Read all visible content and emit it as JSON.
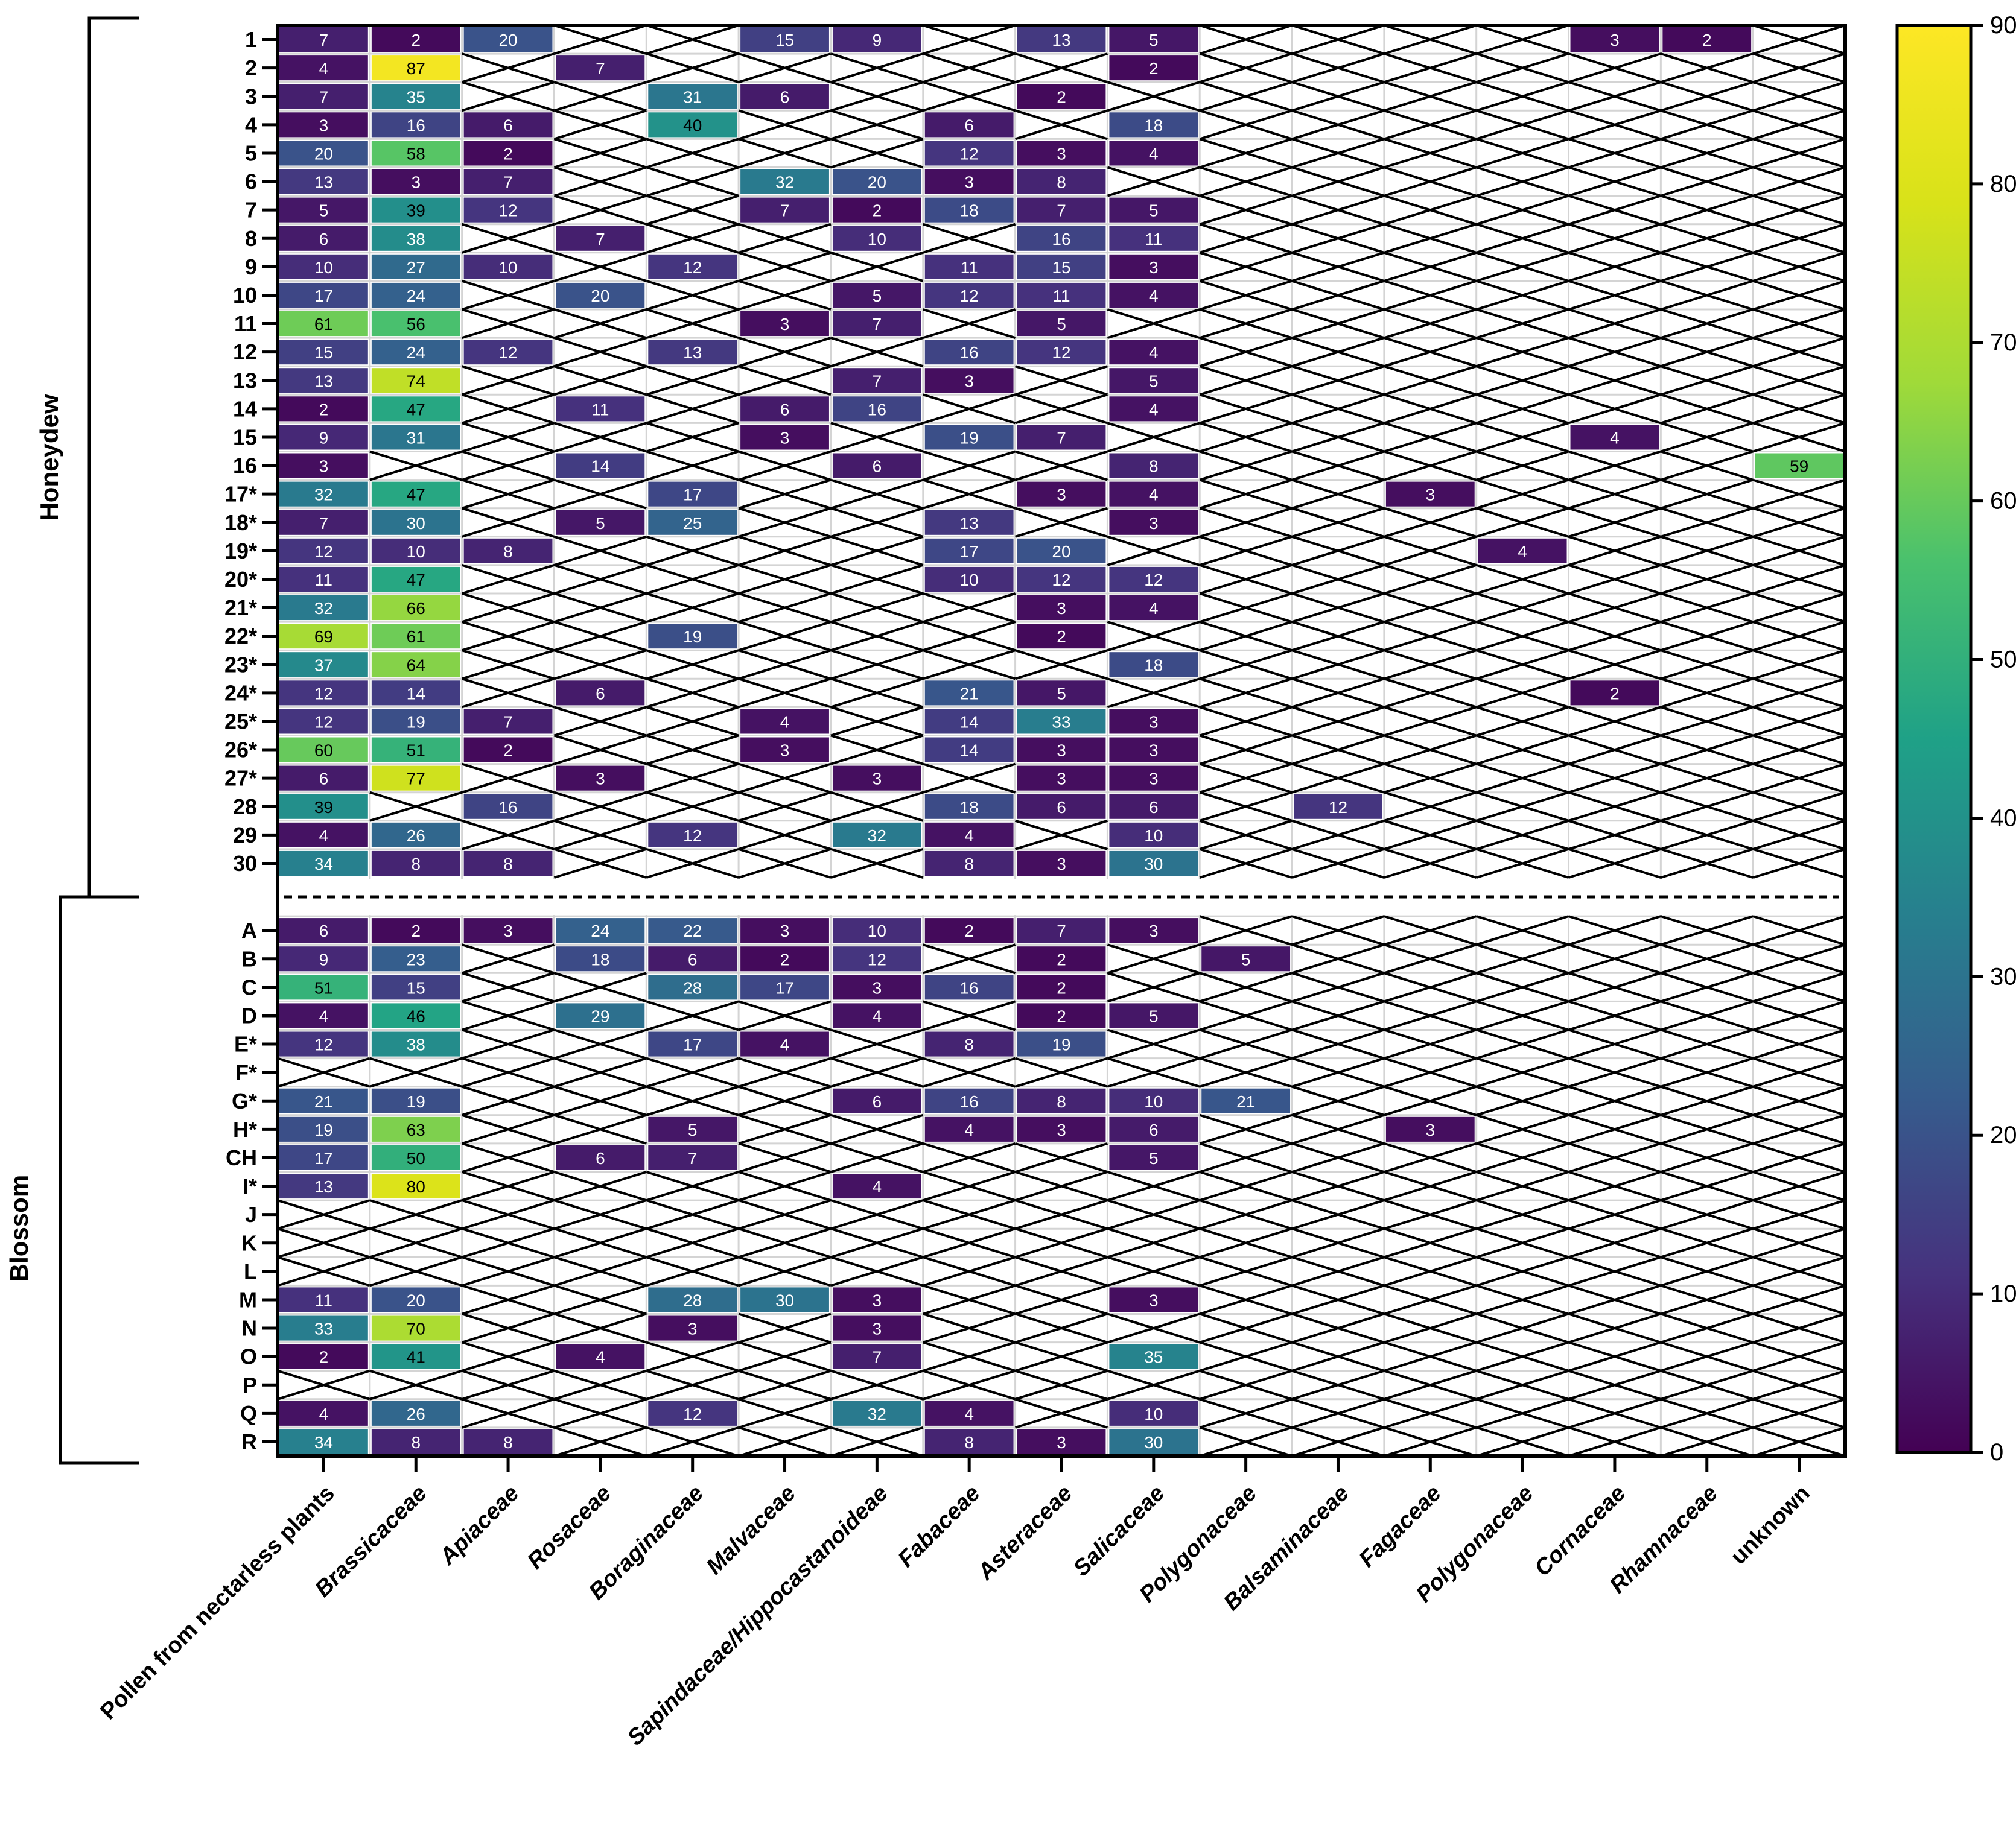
{
  "chart_data": {
    "type": "heatmap",
    "title": "",
    "xlabel": "",
    "ylabel": "",
    "columns": [
      "Pollen from nectarless plants",
      "Brassicaceae",
      "Apiaceae",
      "Rosaceae",
      "Boraginaceae",
      "Malvaceae",
      "Sapindaceae/Hippocastanoideae",
      "Fabaceae",
      "Asteraceae",
      "Salicaceae",
      "Polygonaceae",
      "Balsaminaceae",
      "Fagaceae",
      "Polygonaceae",
      "Cornaceae",
      "Rhamnaceae",
      "unknown"
    ],
    "groups": [
      {
        "name": "Honeydew",
        "rows": [
          "1",
          "2",
          "3",
          "4",
          "5",
          "6",
          "7",
          "8",
          "9",
          "10",
          "11",
          "12",
          "13",
          "14",
          "15",
          "16",
          "17*",
          "18*",
          "19*",
          "20*",
          "21*",
          "22*",
          "23*",
          "24*",
          "25*",
          "26*",
          "27*",
          "28",
          "29",
          "30"
        ]
      },
      {
        "name": "Blossom",
        "rows": [
          "A",
          "B",
          "C",
          "D",
          "E*",
          "F*",
          "G*",
          "H*",
          "CH",
          "I*",
          "J",
          "K",
          "L",
          "M",
          "N",
          "O",
          "P",
          "Q",
          "R"
        ]
      }
    ],
    "values": [
      [
        7,
        2,
        20,
        null,
        null,
        15,
        9,
        null,
        13,
        5,
        null,
        null,
        null,
        null,
        3,
        2,
        null
      ],
      [
        4,
        87,
        null,
        7,
        null,
        null,
        null,
        null,
        null,
        2,
        null,
        null,
        null,
        null,
        null,
        null,
        null
      ],
      [
        7,
        35,
        null,
        null,
        31,
        6,
        null,
        null,
        2,
        null,
        null,
        null,
        null,
        null,
        null,
        null,
        null
      ],
      [
        3,
        16,
        6,
        null,
        40,
        null,
        null,
        6,
        null,
        18,
        null,
        null,
        null,
        null,
        null,
        null,
        null
      ],
      [
        20,
        58,
        2,
        null,
        null,
        null,
        null,
        12,
        3,
        4,
        null,
        null,
        null,
        null,
        null,
        null,
        null
      ],
      [
        13,
        3,
        7,
        null,
        null,
        32,
        20,
        3,
        8,
        null,
        null,
        null,
        null,
        null,
        null,
        null,
        null
      ],
      [
        5,
        39,
        12,
        null,
        null,
        7,
        2,
        18,
        7,
        5,
        null,
        null,
        null,
        null,
        null,
        null,
        null
      ],
      [
        6,
        38,
        null,
        7,
        null,
        null,
        10,
        null,
        16,
        11,
        null,
        null,
        null,
        null,
        null,
        null,
        null
      ],
      [
        10,
        27,
        10,
        null,
        12,
        null,
        null,
        11,
        15,
        3,
        null,
        null,
        null,
        null,
        null,
        null,
        null
      ],
      [
        17,
        24,
        null,
        20,
        null,
        null,
        5,
        12,
        11,
        4,
        null,
        null,
        null,
        null,
        null,
        null,
        null
      ],
      [
        61,
        56,
        null,
        null,
        null,
        3,
        7,
        null,
        5,
        null,
        null,
        null,
        null,
        null,
        null,
        null,
        null
      ],
      [
        15,
        24,
        12,
        null,
        13,
        null,
        null,
        16,
        12,
        4,
        null,
        null,
        null,
        null,
        null,
        null,
        null
      ],
      [
        13,
        74,
        null,
        null,
        null,
        null,
        7,
        3,
        null,
        5,
        null,
        null,
        null,
        null,
        null,
        null,
        null
      ],
      [
        2,
        47,
        null,
        11,
        null,
        6,
        16,
        null,
        null,
        4,
        null,
        null,
        null,
        null,
        null,
        null,
        null
      ],
      [
        9,
        31,
        null,
        null,
        null,
        3,
        null,
        19,
        7,
        null,
        null,
        null,
        null,
        null,
        4,
        null,
        null
      ],
      [
        3,
        null,
        null,
        14,
        null,
        null,
        6,
        null,
        null,
        8,
        null,
        null,
        null,
        null,
        null,
        null,
        59
      ],
      [
        32,
        47,
        null,
        null,
        17,
        null,
        null,
        null,
        3,
        4,
        null,
        null,
        3,
        null,
        null,
        null,
        null
      ],
      [
        7,
        30,
        null,
        5,
        25,
        null,
        null,
        13,
        null,
        3,
        null,
        null,
        null,
        null,
        null,
        null,
        null
      ],
      [
        12,
        10,
        8,
        null,
        null,
        null,
        null,
        17,
        20,
        null,
        null,
        null,
        null,
        4,
        null,
        null,
        null
      ],
      [
        11,
        47,
        null,
        null,
        null,
        null,
        null,
        10,
        12,
        12,
        null,
        null,
        null,
        null,
        null,
        null,
        null
      ],
      [
        32,
        66,
        null,
        null,
        null,
        null,
        null,
        null,
        3,
        4,
        null,
        null,
        null,
        null,
        null,
        null,
        null
      ],
      [
        69,
        61,
        null,
        null,
        19,
        null,
        null,
        null,
        2,
        null,
        null,
        null,
        null,
        null,
        null,
        null,
        null
      ],
      [
        37,
        64,
        null,
        null,
        null,
        null,
        null,
        null,
        null,
        18,
        null,
        null,
        null,
        null,
        null,
        null,
        null
      ],
      [
        12,
        14,
        null,
        6,
        null,
        null,
        null,
        21,
        5,
        null,
        null,
        null,
        null,
        null,
        2,
        null,
        null
      ],
      [
        12,
        19,
        7,
        null,
        null,
        4,
        null,
        14,
        33,
        3,
        null,
        null,
        null,
        null,
        null,
        null,
        null
      ],
      [
        60,
        51,
        2,
        null,
        null,
        3,
        null,
        14,
        3,
        3,
        null,
        null,
        null,
        null,
        null,
        null,
        null
      ],
      [
        6,
        77,
        null,
        3,
        null,
        null,
        3,
        null,
        3,
        3,
        null,
        null,
        null,
        null,
        null,
        null,
        null
      ],
      [
        39,
        null,
        16,
        null,
        null,
        null,
        null,
        18,
        6,
        6,
        null,
        12,
        null,
        null,
        null,
        null,
        null
      ],
      [
        4,
        26,
        null,
        null,
        12,
        null,
        32,
        4,
        null,
        10,
        null,
        null,
        null,
        null,
        null,
        null,
        null
      ],
      [
        34,
        8,
        8,
        null,
        null,
        null,
        null,
        8,
        3,
        30,
        null,
        null,
        null,
        null,
        null,
        null,
        null
      ],
      [
        6,
        2,
        3,
        24,
        22,
        3,
        10,
        2,
        7,
        3,
        null,
        null,
        null,
        null,
        null,
        null,
        null
      ],
      [
        9,
        23,
        null,
        18,
        6,
        2,
        12,
        null,
        2,
        null,
        5,
        null,
        null,
        null,
        null,
        null,
        null
      ],
      [
        51,
        15,
        null,
        null,
        28,
        17,
        3,
        16,
        2,
        null,
        null,
        null,
        null,
        null,
        null,
        null,
        null
      ],
      [
        4,
        46,
        null,
        29,
        null,
        null,
        4,
        null,
        2,
        5,
        null,
        null,
        null,
        null,
        null,
        null,
        null
      ],
      [
        12,
        38,
        null,
        null,
        17,
        4,
        null,
        8,
        19,
        null,
        null,
        null,
        null,
        null,
        null,
        null,
        null
      ],
      [
        null,
        null,
        null,
        null,
        null,
        null,
        null,
        null,
        null,
        null,
        null,
        null,
        null,
        null,
        null,
        null,
        null
      ],
      [
        21,
        19,
        null,
        null,
        null,
        null,
        6,
        16,
        8,
        10,
        21,
        null,
        null,
        null,
        null,
        null,
        null
      ],
      [
        19,
        63,
        null,
        null,
        5,
        null,
        null,
        4,
        3,
        6,
        null,
        null,
        3,
        null,
        null,
        null,
        null
      ],
      [
        17,
        50,
        null,
        6,
        7,
        null,
        null,
        null,
        null,
        5,
        null,
        null,
        null,
        null,
        null,
        null,
        null
      ],
      [
        13,
        80,
        null,
        null,
        null,
        null,
        4,
        null,
        null,
        null,
        null,
        null,
        null,
        null,
        null,
        null,
        null
      ],
      [
        null,
        null,
        null,
        null,
        null,
        null,
        null,
        null,
        null,
        null,
        null,
        null,
        null,
        null,
        null,
        null,
        null
      ],
      [
        null,
        null,
        null,
        null,
        null,
        null,
        null,
        null,
        null,
        null,
        null,
        null,
        null,
        null,
        null,
        null,
        null
      ],
      [
        null,
        null,
        null,
        null,
        null,
        null,
        null,
        null,
        null,
        null,
        null,
        null,
        null,
        null,
        null,
        null,
        null
      ],
      [
        11,
        20,
        null,
        null,
        28,
        30,
        3,
        null,
        null,
        3,
        null,
        null,
        null,
        null,
        null,
        null,
        null
      ],
      [
        33,
        70,
        null,
        null,
        3,
        null,
        3,
        null,
        null,
        null,
        null,
        null,
        null,
        null,
        null,
        null,
        null
      ],
      [
        2,
        41,
        null,
        4,
        null,
        null,
        7,
        null,
        null,
        35,
        null,
        null,
        null,
        null,
        null,
        null,
        null
      ],
      [
        null,
        null,
        null,
        null,
        null,
        null,
        null,
        null,
        null,
        null,
        null,
        null,
        null,
        null,
        null,
        null,
        null
      ],
      [
        4,
        26,
        null,
        null,
        12,
        null,
        32,
        4,
        null,
        10,
        null,
        null,
        null,
        null,
        null,
        null,
        null
      ],
      [
        34,
        8,
        8,
        null,
        null,
        null,
        null,
        8,
        3,
        30,
        null,
        null,
        null,
        null,
        null,
        null,
        null
      ]
    ],
    "colorbar": {
      "range": [
        0,
        90
      ],
      "ticks": [
        0,
        10,
        20,
        30,
        40,
        50,
        60,
        70,
        80,
        90
      ],
      "colormap": "viridis"
    },
    "missing_marker": "cross"
  }
}
